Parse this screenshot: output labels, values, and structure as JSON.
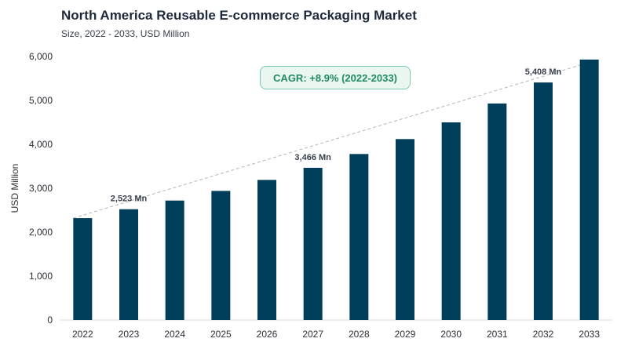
{
  "header": {
    "title": "North America Reusable E-commerce Packaging Market",
    "subtitle": "Size, 2022 - 2033, USD Million"
  },
  "cagr_label": "CAGR: +8.9% (2022-2033)",
  "colors": {
    "bar": "#003f5c",
    "trend": "#b5b5b5",
    "cagr_border": "#7cc9a9",
    "cagr_text": "#1f8a63"
  },
  "chart_data": {
    "type": "bar",
    "title": "North America Reusable E-commerce Packaging Market",
    "subtitle": "Size, 2022 - 2033, USD Million",
    "xlabel": "",
    "ylabel": "USD Million",
    "categories": [
      "2022",
      "2023",
      "2024",
      "2025",
      "2026",
      "2027",
      "2028",
      "2029",
      "2030",
      "2031",
      "2032",
      "2033"
    ],
    "values": [
      2320,
      2523,
      2720,
      2940,
      3190,
      3466,
      3780,
      4120,
      4500,
      4930,
      5408,
      5930
    ],
    "ylim": [
      0,
      6000
    ],
    "yticks": [
      0,
      1000,
      2000,
      3000,
      4000,
      5000,
      6000
    ],
    "ytick_labels": [
      "0",
      "1,000",
      "2,000",
      "3,000",
      "4,000",
      "5,000",
      "6,000"
    ],
    "data_labels": [
      {
        "category": "2023",
        "text": "2,523 Mn"
      },
      {
        "category": "2027",
        "text": "3,466 Mn"
      },
      {
        "category": "2032",
        "text": "5,408 Mn"
      }
    ],
    "trendline": {
      "from": "2022",
      "to": "2033",
      "style": "dashed"
    },
    "grid": false,
    "legend": "none"
  }
}
